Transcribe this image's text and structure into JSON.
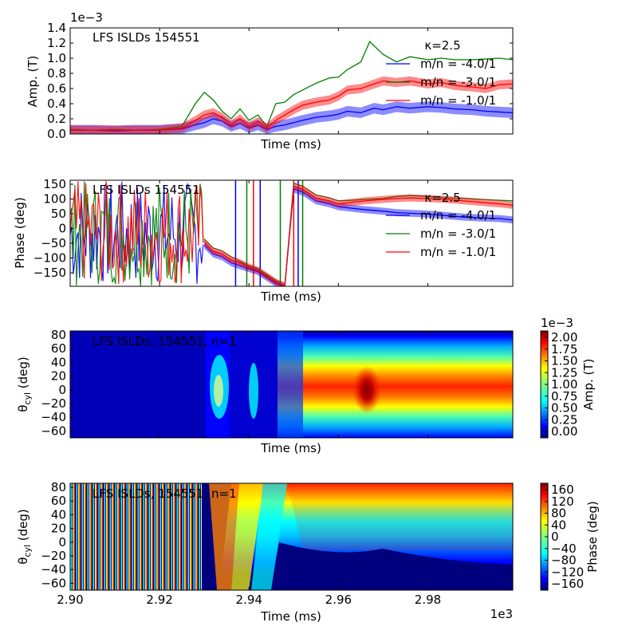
{
  "chart_data": [
    {
      "type": "line",
      "title": "LFS ISLDs 154551",
      "xlabel": "Time (ms)",
      "ylabel": "Amp. (T)",
      "y_multiplier": "1e−3",
      "ylim": [
        0,
        1.4
      ],
      "xlim": [
        2900,
        2999
      ],
      "yticks": [
        "0.0",
        "0.2",
        "0.4",
        "0.6",
        "0.8",
        "1.0",
        "1.2",
        "1.4"
      ],
      "legend_title": "κ=2.5",
      "legend_loc": "top-right",
      "series": [
        {
          "name": "m/n = -4.0/1",
          "color": "#0000ff",
          "x": [
            2900,
            2905,
            2910,
            2915,
            2920,
            2925,
            2928,
            2930,
            2932,
            2934,
            2936,
            2938,
            2940,
            2942,
            2944,
            2946,
            2948,
            2950,
            2952,
            2955,
            2958,
            2960,
            2962,
            2965,
            2968,
            2970,
            2973,
            2976,
            2980,
            2983,
            2986,
            2990,
            2993,
            2996,
            2999
          ],
          "y": [
            0.05,
            0.05,
            0.04,
            0.05,
            0.05,
            0.07,
            0.12,
            0.15,
            0.2,
            0.17,
            0.1,
            0.14,
            0.08,
            0.12,
            0.06,
            0.1,
            0.12,
            0.15,
            0.18,
            0.22,
            0.24,
            0.26,
            0.3,
            0.28,
            0.34,
            0.32,
            0.36,
            0.34,
            0.36,
            0.35,
            0.33,
            0.32,
            0.3,
            0.29,
            0.28
          ]
        },
        {
          "name": "m/n = -3.0/1",
          "color": "#008000",
          "x": [
            2900,
            2905,
            2910,
            2915,
            2920,
            2925,
            2928,
            2930,
            2932,
            2934,
            2936,
            2938,
            2940,
            2942,
            2944,
            2946,
            2948,
            2950,
            2952,
            2955,
            2958,
            2960,
            2962,
            2965,
            2967,
            2970,
            2973,
            2976,
            2980,
            2983,
            2986,
            2990,
            2993,
            2996,
            2999
          ],
          "y": [
            0.06,
            0.05,
            0.06,
            0.05,
            0.06,
            0.1,
            0.4,
            0.55,
            0.45,
            0.3,
            0.2,
            0.33,
            0.18,
            0.25,
            0.1,
            0.4,
            0.42,
            0.52,
            0.58,
            0.67,
            0.74,
            0.75,
            0.85,
            0.95,
            1.22,
            1.05,
            0.95,
            1.02,
            0.98,
            1.0,
            0.98,
            0.98,
            0.99,
            1.0,
            0.98
          ]
        },
        {
          "name": "m/n = -1.0/1",
          "color": "#ff0000",
          "x": [
            2900,
            2905,
            2910,
            2915,
            2920,
            2925,
            2928,
            2930,
            2932,
            2934,
            2936,
            2938,
            2940,
            2942,
            2944,
            2946,
            2948,
            2950,
            2952,
            2955,
            2958,
            2960,
            2962,
            2965,
            2968,
            2970,
            2973,
            2976,
            2980,
            2983,
            2986,
            2990,
            2993,
            2996,
            2999
          ],
          "y": [
            0.05,
            0.05,
            0.05,
            0.05,
            0.05,
            0.08,
            0.18,
            0.25,
            0.28,
            0.22,
            0.12,
            0.2,
            0.1,
            0.16,
            0.08,
            0.18,
            0.25,
            0.32,
            0.38,
            0.42,
            0.45,
            0.5,
            0.58,
            0.6,
            0.66,
            0.7,
            0.68,
            0.7,
            0.66,
            0.68,
            0.64,
            0.62,
            0.6,
            0.65,
            0.66
          ]
        }
      ]
    },
    {
      "type": "line",
      "title": "LFS ISLDs 154551",
      "xlabel": "Time (ms)",
      "ylabel": "Phase (deg)",
      "ylim": [
        -180,
        180
      ],
      "xlim": [
        2900,
        2999
      ],
      "yticks": [
        "−150",
        "−100",
        "−50",
        "0",
        "50",
        "100",
        "150"
      ],
      "legend_title": "κ=2.5",
      "legend_loc": "right",
      "series": [
        {
          "name": "m/n = -4.0/1",
          "color": "#0000ff",
          "x": [
            2930,
            2932,
            2934,
            2936,
            2938,
            2940,
            2942,
            2944,
            2946,
            2948,
            2950,
            2952,
            2955,
            2958,
            2960,
            2963,
            2966,
            2970,
            2973,
            2976,
            2980,
            2984,
            2988,
            2992,
            2996,
            2999
          ],
          "y": [
            -40,
            -70,
            -80,
            -100,
            -110,
            -120,
            -130,
            -150,
            -170,
            -180,
            150,
            140,
            110,
            100,
            90,
            85,
            80,
            75,
            70,
            68,
            65,
            60,
            55,
            52,
            50,
            45
          ]
        },
        {
          "name": "m/n = -3.0/1",
          "color": "#008000",
          "x": [
            2930,
            2932,
            2934,
            2936,
            2938,
            2940,
            2942,
            2944,
            2946,
            2948,
            2950,
            2952,
            2955,
            2958,
            2960,
            2963,
            2966,
            2970,
            2973,
            2976,
            2980,
            2984,
            2988,
            2992,
            2996,
            2999
          ],
          "y": [
            -20,
            -50,
            -60,
            -80,
            -95,
            -110,
            -120,
            -140,
            -160,
            -180,
            170,
            160,
            130,
            120,
            110,
            112,
            115,
            118,
            125,
            128,
            125,
            120,
            118,
            115,
            112,
            110
          ]
        },
        {
          "name": "m/n = -1.0/1",
          "color": "#ff0000",
          "x": [
            2930,
            2932,
            2934,
            2936,
            2938,
            2940,
            2942,
            2944,
            2946,
            2948,
            2950,
            2952,
            2955,
            2958,
            2960,
            2963,
            2966,
            2970,
            2973,
            2976,
            2980,
            2984,
            2988,
            2992,
            2996,
            2999
          ],
          "y": [
            -30,
            -60,
            -70,
            -90,
            -100,
            -115,
            -125,
            -145,
            -165,
            -180,
            160,
            150,
            120,
            110,
            100,
            105,
            110,
            115,
            118,
            120,
            118,
            115,
            110,
            105,
            100,
            95
          ]
        }
      ]
    },
    {
      "type": "heatmap",
      "title": "LFS ISLDs, 154551, n=1",
      "xlabel": "Time (ms)",
      "ylabel": "θ_cyl (deg)",
      "yticks": [
        "80",
        "60",
        "40",
        "20",
        "0",
        "−20",
        "−40",
        "−60"
      ],
      "colorbar_label": "Amp. (T)",
      "colorbar_multiplier": "1e−3",
      "colorbar_ticks": [
        "2.00",
        "1.75",
        "1.50",
        "1.25",
        "1.00",
        "0.75",
        "0.50",
        "0.25",
        "0.00"
      ],
      "colormap": "jet"
    },
    {
      "type": "heatmap",
      "title": "LFS ISLDs, 154551, n=1",
      "xlabel": "Time (ms)",
      "ylabel": "θ_cyl (deg)",
      "yticks": [
        "80",
        "60",
        "40",
        "20",
        "0",
        "−20",
        "−40",
        "−60"
      ],
      "xticks": [
        "2.90",
        "2.92",
        "2.94",
        "2.96",
        "2.98"
      ],
      "x_multiplier": "1e3",
      "colorbar_label": "Phase (deg)",
      "colorbar_ticks": [
        "160",
        "120",
        "80",
        "40",
        "0",
        "−40",
        "−80",
        "−120",
        "−160"
      ],
      "colormap": "jet"
    }
  ]
}
